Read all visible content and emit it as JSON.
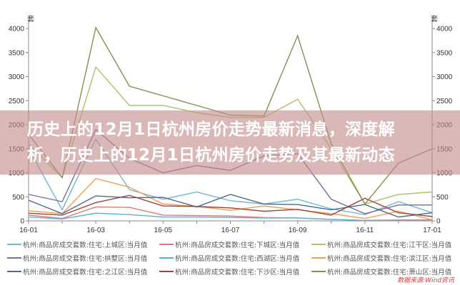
{
  "banner": {
    "line1": "历史上的12月1日杭州房价走势最新消息，深度解",
    "line2": "析，历史上的12月1日杭州房价走势及其最新动态"
  },
  "source": "数据来源:Wind资讯",
  "chart_data": {
    "type": "line",
    "title": "",
    "ylabel_left": "套",
    "ylabel_right": "套",
    "ylim": [
      0,
      4000
    ],
    "yticks": [
      0,
      500,
      1000,
      1500,
      2000,
      2500,
      3000,
      3500,
      4000
    ],
    "x": [
      "16-01",
      "16-02",
      "16-03",
      "16-04",
      "16-05",
      "16-06",
      "16-07",
      "16-08",
      "16-09",
      "16-10",
      "16-11",
      "16-12",
      "17-01"
    ],
    "xtick_labels": [
      "16-01",
      "16-03",
      "16-05",
      "16-07",
      "16-09",
      "16-11",
      "17-01"
    ],
    "grid": false,
    "legend_position": "bottom",
    "series": [
      {
        "name": "杭州:商品房成交套数:住宅:上城区:当月值",
        "color": "#6fb7d6",
        "values": [
          1500,
          230,
          1700,
          650,
          450,
          600,
          420,
          350,
          450,
          250,
          130,
          400,
          170
        ]
      },
      {
        "name": "杭州:商品房成交套数:住宅:下城区:当月值",
        "color": "#e07a70",
        "values": [
          120,
          50,
          290,
          280,
          120,
          110,
          100,
          70,
          60,
          30,
          10,
          20,
          20
        ]
      },
      {
        "name": "杭州:商品房成交套数:住宅:江干区:当月值",
        "color": "#a9c46e",
        "values": [
          1600,
          900,
          3200,
          2400,
          2400,
          2250,
          2150,
          2150,
          2530,
          1500,
          350,
          550,
          600
        ]
      },
      {
        "name": "杭州:商品房成交套数:住宅:拱墅区:当月值",
        "color": "#7d6ba3",
        "values": [
          550,
          400,
          1900,
          1300,
          1000,
          1150,
          1050,
          1350,
          1400,
          450,
          150,
          330,
          330
        ]
      },
      {
        "name": "杭州:商品房成交套数:住宅:西湖区:当月值",
        "color": "#5ab0d8",
        "values": [
          80,
          40,
          160,
          130,
          80,
          80,
          70,
          60,
          60,
          30,
          10,
          10,
          10
        ]
      },
      {
        "name": "杭州:商品房成交套数:住宅:滨江区:当月值",
        "color": "#f0a050",
        "values": [
          210,
          150,
          880,
          700,
          350,
          300,
          220,
          310,
          230,
          150,
          50,
          200,
          20
        ]
      },
      {
        "name": "杭州:商品房成交套数:住宅:之江区:当月值",
        "color": "#4a6a8a",
        "values": [
          430,
          150,
          520,
          480,
          490,
          290,
          550,
          350,
          340,
          230,
          340,
          80,
          170
        ]
      },
      {
        "name": "杭州:商品房成交套数:住宅:下沙区:当月值",
        "color": "#a04040",
        "values": [
          160,
          120,
          380,
          530,
          310,
          300,
          270,
          200,
          240,
          120,
          470,
          170,
          90
        ]
      },
      {
        "name": "杭州:商品房成交套数:住宅:萧山区:当月值",
        "color": "#8c8c50",
        "values": [
          1800,
          900,
          4020,
          2800,
          2600,
          2400,
          2200,
          2180,
          3850,
          1600,
          350,
          1200,
          1500
        ]
      }
    ]
  }
}
